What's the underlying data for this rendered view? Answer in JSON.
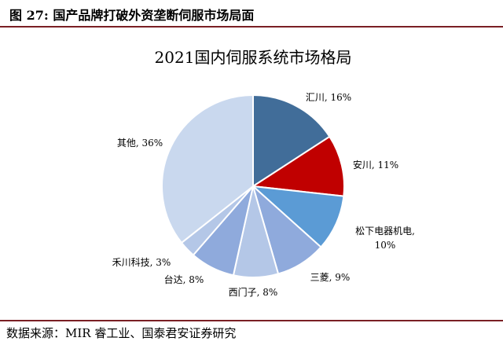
{
  "figure": {
    "label": "图 27:",
    "caption": "国产品牌打破外资垄断伺服市场局面",
    "source": "数据来源：MIR 睿工业、国泰君安证券研究"
  },
  "chart_data": {
    "type": "pie",
    "title": "2021国内伺服系统市场格局",
    "slices": [
      {
        "name": "汇川",
        "value": 16,
        "label": "汇川, 16%",
        "color": "#416d99"
      },
      {
        "name": "安川",
        "value": 11,
        "label": "安川, 11%",
        "color": "#c00000"
      },
      {
        "name": "松下电器机电",
        "value": 10,
        "label": "松下电器机电, 10%",
        "color": "#5b9bd5"
      },
      {
        "name": "三菱",
        "value": 9,
        "label": "三菱, 9%",
        "color": "#8faadc"
      },
      {
        "name": "西门子",
        "value": 8,
        "label": "西门子, 8%",
        "color": "#b4c7e7"
      },
      {
        "name": "台达",
        "value": 8,
        "label": "台达, 8%",
        "color": "#8faadc"
      },
      {
        "name": "禾川科技",
        "value": 3,
        "label": "禾川科技, 3%",
        "color": "#b4c7e7"
      },
      {
        "name": "其他",
        "value": 36,
        "label": "其他, 36%",
        "color": "#c9d8ee"
      }
    ],
    "legend": "none"
  }
}
